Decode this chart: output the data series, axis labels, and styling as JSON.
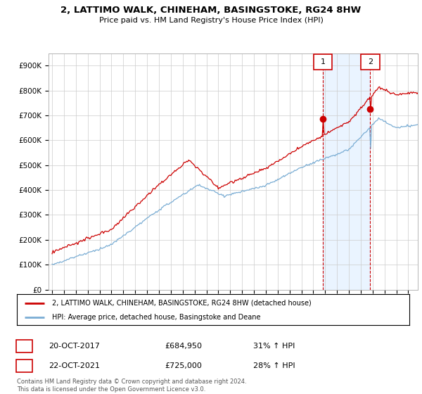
{
  "title": "2, LATTIMO WALK, CHINEHAM, BASINGSTOKE, RG24 8HW",
  "subtitle": "Price paid vs. HM Land Registry's House Price Index (HPI)",
  "ylabel_ticks": [
    "£0",
    "£100K",
    "£200K",
    "£300K",
    "£400K",
    "£500K",
    "£600K",
    "£700K",
    "£800K",
    "£900K"
  ],
  "ytick_values": [
    0,
    100000,
    200000,
    300000,
    400000,
    500000,
    600000,
    700000,
    800000,
    900000
  ],
  "ylim": [
    0,
    950000
  ],
  "xlim_start": 1994.7,
  "xlim_end": 2025.8,
  "red_color": "#cc0000",
  "blue_color": "#7aadd4",
  "blue_fill": "#ddeeff",
  "background_color": "#ffffff",
  "grid_color": "#cccccc",
  "sale1_x": 2017.8,
  "sale1_y": 684950,
  "sale2_x": 2021.8,
  "sale2_y": 725000,
  "sale1_label": "20-OCT-2017",
  "sale1_price": "£684,950",
  "sale1_hpi": "31% ↑ HPI",
  "sale2_label": "22-OCT-2021",
  "sale2_price": "£725,000",
  "sale2_hpi": "28% ↑ HPI",
  "legend_red": "2, LATTIMO WALK, CHINEHAM, BASINGSTOKE, RG24 8HW (detached house)",
  "legend_blue": "HPI: Average price, detached house, Basingstoke and Deane",
  "footnote": "Contains HM Land Registry data © Crown copyright and database right 2024.\nThis data is licensed under the Open Government Licence v3.0."
}
